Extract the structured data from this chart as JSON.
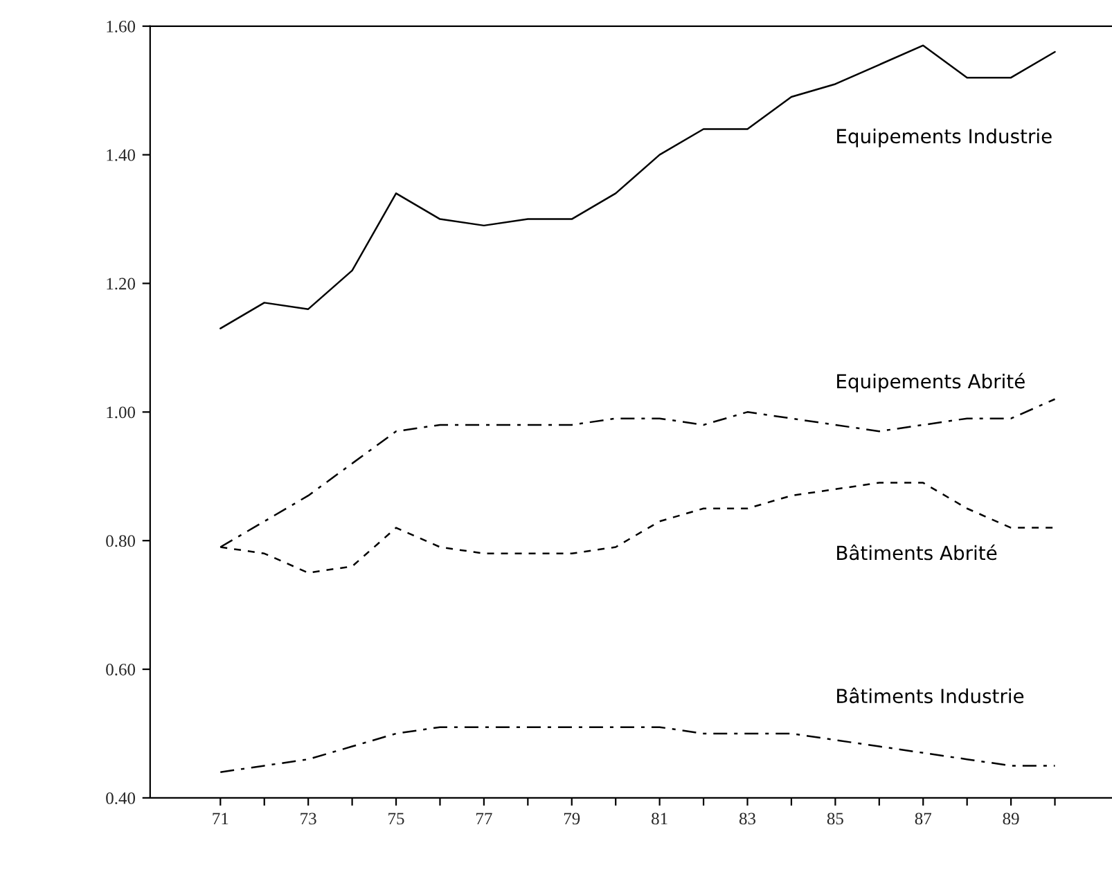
{
  "chart_data": {
    "type": "line",
    "x": [
      71,
      72,
      73,
      74,
      75,
      76,
      77,
      78,
      79,
      80,
      81,
      82,
      83,
      84,
      85,
      86,
      87,
      88,
      89,
      90
    ],
    "series": [
      {
        "name": "Equipements Industrie",
        "color": "#000000",
        "line_style": "solid",
        "values": [
          1.13,
          1.17,
          1.16,
          1.22,
          1.34,
          1.3,
          1.29,
          1.3,
          1.3,
          1.34,
          1.4,
          1.44,
          1.44,
          1.49,
          1.51,
          1.54,
          1.57,
          1.52,
          1.52,
          1.56
        ]
      },
      {
        "name": "Equipements Abrité",
        "color": "#000000",
        "line_style": "dashed",
        "values": [
          0.79,
          0.83,
          0.87,
          0.92,
          0.97,
          0.98,
          0.98,
          0.98,
          0.98,
          0.99,
          0.99,
          0.98,
          1.0,
          0.99,
          0.98,
          0.97,
          0.98,
          0.99,
          0.99,
          1.02
        ]
      },
      {
        "name": "Bâtiments Abrité",
        "color": "#000000",
        "line_style": "dotted",
        "values": [
          0.79,
          0.78,
          0.75,
          0.76,
          0.82,
          0.79,
          0.78,
          0.78,
          0.78,
          0.79,
          0.83,
          0.85,
          0.85,
          0.87,
          0.88,
          0.89,
          0.89,
          0.85,
          0.82,
          0.82
        ]
      },
      {
        "name": "Bâtiments Industrie",
        "color": "#000000",
        "line_style": "dashed",
        "values": [
          0.44,
          0.45,
          0.46,
          0.48,
          0.5,
          0.51,
          0.51,
          0.51,
          0.51,
          0.51,
          0.51,
          0.5,
          0.5,
          0.5,
          0.49,
          0.48,
          0.47,
          0.46,
          0.45,
          0.45
        ]
      }
    ],
    "xlim": [
      69.4,
      91.3
    ],
    "xticks": [
      71,
      {
        "value": 72,
        "label": null
      },
      73,
      {
        "value": 74,
        "label": null
      },
      75,
      {
        "value": 76,
        "label": null
      },
      77,
      {
        "value": 78,
        "label": null
      },
      79,
      {
        "value": 80,
        "label": null
      },
      81,
      {
        "value": 82,
        "label": null
      },
      83,
      {
        "value": 84,
        "label": null
      },
      85,
      {
        "value": 86,
        "label": null
      },
      87,
      {
        "value": 88,
        "label": null
      },
      89,
      {
        "value": 90,
        "label": null
      }
    ],
    "ylim": [
      0.4,
      1.6
    ],
    "yticks": [
      {
        "value": 0.4,
        "label": "0.40"
      },
      {
        "value": 0.6,
        "label": "0.60"
      },
      {
        "value": 0.8,
        "label": "0.80"
      },
      {
        "value": 1.0,
        "label": "1.00"
      },
      {
        "value": 1.2,
        "label": "1.20"
      },
      {
        "value": 1.4,
        "label": "1.40"
      },
      {
        "value": 1.6,
        "label": "1.60"
      }
    ],
    "grid": false,
    "legend": false
  }
}
